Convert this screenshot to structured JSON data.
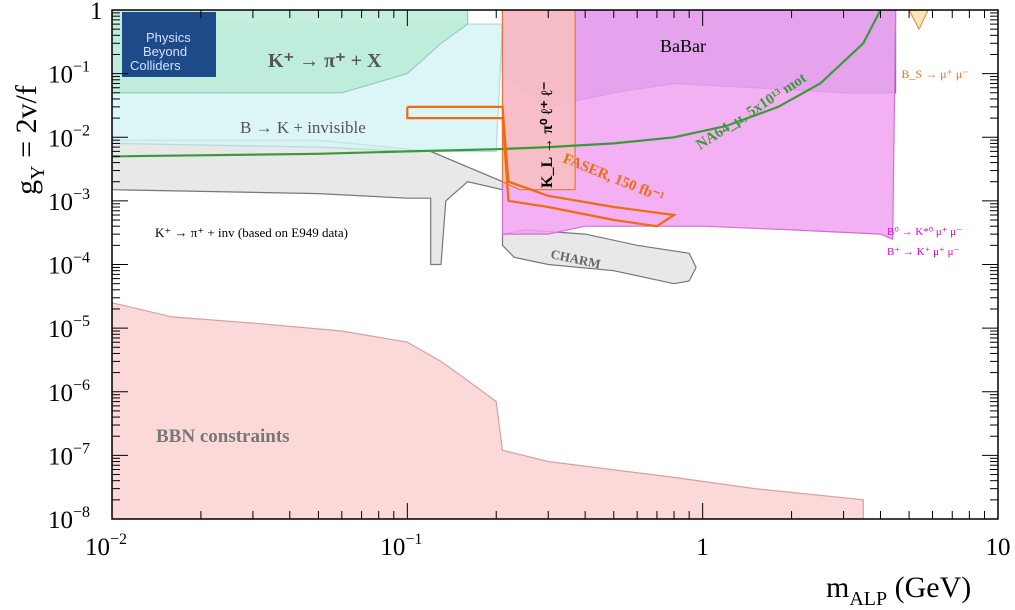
{
  "chart_data": {
    "type": "area",
    "xlabel": "m_ALP (GeV)",
    "ylabel": "g_Y = 2v/f",
    "x_scale": "log",
    "y_scale": "log",
    "xlim": [
      0.01,
      10
    ],
    "ylim": [
      1e-08,
      1
    ],
    "x_ticks": [
      {
        "value": 0.01,
        "base": "10",
        "exp": "−2"
      },
      {
        "value": 0.1,
        "base": "10",
        "exp": "−1"
      },
      {
        "value": 1,
        "base": "1",
        "exp": ""
      },
      {
        "value": 10,
        "base": "10",
        "exp": ""
      }
    ],
    "y_ticks": [
      {
        "value": 1,
        "base": "1",
        "exp": ""
      },
      {
        "value": 0.1,
        "base": "10",
        "exp": "−1"
      },
      {
        "value": 0.01,
        "base": "10",
        "exp": "−2"
      },
      {
        "value": 0.001,
        "base": "10",
        "exp": "−3"
      },
      {
        "value": 0.0001,
        "base": "10",
        "exp": "−4"
      },
      {
        "value": 1e-05,
        "base": "10",
        "exp": "−5"
      },
      {
        "value": 1e-06,
        "base": "10",
        "exp": "−6"
      },
      {
        "value": 1e-07,
        "base": "10",
        "exp": "−7"
      },
      {
        "value": 1e-08,
        "base": "10",
        "exp": "−8"
      }
    ],
    "grid": false,
    "logo": {
      "lines": [
        "Physics",
        "Beyond",
        "Colliders"
      ]
    },
    "regions": [
      {
        "id": "bbn",
        "label": "BBN constraints",
        "fill": "#fad2d2",
        "stroke": "#d9a0a0",
        "label_color": "#777777",
        "points": [
          [
            0.01,
            2.5e-05
          ],
          [
            0.016,
            1.5e-05
          ],
          [
            0.03,
            1.2e-05
          ],
          [
            0.06,
            9e-06
          ],
          [
            0.1,
            6e-06
          ],
          [
            0.13,
            3e-06
          ],
          [
            0.16,
            1.5e-06
          ],
          [
            0.2,
            7e-07
          ],
          [
            0.21,
            1.2e-07
          ],
          [
            0.3,
            8e-08
          ],
          [
            0.8,
            4.5e-08
          ],
          [
            1.5,
            3e-08
          ],
          [
            3.5,
            2e-08
          ],
          [
            3.5,
            1e-08
          ],
          [
            0.01,
            1e-08
          ]
        ]
      },
      {
        "id": "k-pi-inv-e949",
        "label": "K⁺ → π⁺ + inv (based on E949 data)",
        "fill": "#e4e4e4",
        "stroke": "#777777",
        "label_color": "#000000",
        "points": [
          [
            0.01,
            0.0015
          ],
          [
            0.05,
            0.0013
          ],
          [
            0.1,
            0.0011
          ],
          [
            0.12,
            0.0011
          ],
          [
            0.12,
            0.0001
          ],
          [
            0.13,
            0.0001
          ],
          [
            0.135,
            0.001
          ],
          [
            0.16,
            0.002
          ],
          [
            0.21,
            0.0015
          ],
          [
            0.21,
            0.002
          ],
          [
            0.12,
            0.006
          ],
          [
            0.05,
            0.009
          ],
          [
            0.01,
            0.009
          ],
          [
            0.01,
            0.0015
          ]
        ]
      },
      {
        "id": "b-k-invisible",
        "label": "B → K + invisible",
        "fill": "#d6f3f5",
        "stroke": "#b0dde0",
        "label_color": "#555555",
        "points": [
          [
            0.01,
            0.008
          ],
          [
            0.05,
            0.007
          ],
          [
            0.1,
            0.006
          ],
          [
            0.2,
            0.006
          ],
          [
            0.21,
            0.6
          ],
          [
            0.01,
            0.6
          ]
        ]
      },
      {
        "id": "k-pi-x",
        "label": "K⁺ → π⁺ + X",
        "fill": "#b9ecd6",
        "stroke": "#8fd0b5",
        "label_color": "#555555",
        "points": [
          [
            0.01,
            1
          ],
          [
            0.16,
            1
          ],
          [
            0.16,
            0.6
          ],
          [
            0.13,
            0.3
          ],
          [
            0.1,
            0.1
          ],
          [
            0.06,
            0.05
          ],
          [
            0.03,
            0.05
          ],
          [
            0.01,
            0.05
          ]
        ]
      },
      {
        "id": "charm",
        "label": "CHARM",
        "fill": "#e4e4e4",
        "stroke": "#777777",
        "label_color": "#666666",
        "points": [
          [
            0.21,
            0.0002
          ],
          [
            0.23,
            0.00013
          ],
          [
            0.3,
            0.0001
          ],
          [
            0.5,
            8e-05
          ],
          [
            0.8,
            5e-05
          ],
          [
            0.9,
            5.5e-05
          ],
          [
            0.95,
            9e-05
          ],
          [
            0.9,
            0.00015
          ],
          [
            0.6,
            0.0002
          ],
          [
            0.4,
            0.0003
          ],
          [
            0.25,
            0.00035
          ],
          [
            0.21,
            0.0003
          ]
        ]
      },
      {
        "id": "babar",
        "label": "BaBar",
        "fill": "#9a9ad0",
        "stroke": "#7070b0",
        "label_color": "#000000",
        "points": [
          [
            0.21,
            1
          ],
          [
            4.5,
            1
          ],
          [
            4.5,
            0.05
          ],
          [
            3,
            0.05
          ],
          [
            1.5,
            0.06
          ],
          [
            0.8,
            0.07
          ],
          [
            0.5,
            0.05
          ],
          [
            0.3,
            0.03
          ],
          [
            0.21,
            0.1
          ]
        ]
      },
      {
        "id": "b-kstar-mumu",
        "label": "B⁰ → K*⁰ μ⁺ μ⁻",
        "label2": "B⁺ → K⁺ μ⁺ μ⁻",
        "fill": "#f1a2f1",
        "stroke": "#d070d0",
        "label_color": "#dd00dd",
        "points": [
          [
            0.21,
            0.0003
          ],
          [
            0.3,
            0.0003
          ],
          [
            0.4,
            0.0004
          ],
          [
            0.6,
            0.0004
          ],
          [
            1,
            0.0004
          ],
          [
            2,
            0.00035
          ],
          [
            4,
            0.0003
          ],
          [
            4.4,
            0.00025
          ],
          [
            4.5,
            1
          ],
          [
            0.21,
            1
          ]
        ]
      },
      {
        "id": "kl-pi0-ll",
        "label": "K_L → π⁰ ℓ⁺ ℓ⁻",
        "fill": "#f7c0c0",
        "stroke": "#e07a3a",
        "label_color": "#000000",
        "points": [
          [
            0.21,
            0.002
          ],
          [
            0.24,
            0.0015
          ],
          [
            0.37,
            0.0015
          ],
          [
            0.37,
            1
          ],
          [
            0.21,
            1
          ]
        ]
      },
      {
        "id": "bs-mumu",
        "label": "B_S → μ⁺ μ⁻",
        "fill": "#f8dfb0",
        "stroke": "#e09a40",
        "label_color": "#f07020",
        "points": [
          [
            5,
            1
          ],
          [
            5.4,
            0.5
          ],
          [
            5.8,
            1
          ]
        ]
      }
    ],
    "curves": [
      {
        "id": "na64",
        "label": "NA64_μ, 5x10¹³ mot",
        "color": "#3a9a3a",
        "points": [
          [
            0.01,
            0.005
          ],
          [
            0.05,
            0.0055
          ],
          [
            0.1,
            0.006
          ],
          [
            0.2,
            0.0065
          ],
          [
            0.3,
            0.007
          ],
          [
            0.5,
            0.008
          ],
          [
            0.8,
            0.01
          ],
          [
            1.2,
            0.015
          ],
          [
            1.8,
            0.03
          ],
          [
            2.5,
            0.07
          ],
          [
            3.5,
            0.3
          ],
          [
            4,
            1
          ]
        ]
      },
      {
        "id": "faser",
        "label": "FASER, 150 fb⁻¹",
        "color": "#f06a10",
        "points": [
          [
            0.1,
            0.03
          ],
          [
            0.21,
            0.03
          ],
          [
            0.22,
            0.002
          ],
          [
            0.3,
            0.0012
          ],
          [
            0.5,
            0.0008
          ],
          [
            0.8,
            0.0006
          ],
          [
            0.7,
            0.0004
          ],
          [
            0.5,
            0.0005
          ],
          [
            0.3,
            0.0008
          ],
          [
            0.22,
            0.001
          ],
          [
            0.21,
            0.02
          ],
          [
            0.1,
            0.02
          ],
          [
            0.1,
            0.03
          ]
        ]
      }
    ]
  }
}
